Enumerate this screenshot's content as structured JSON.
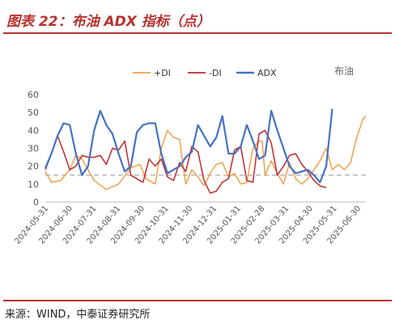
{
  "header": {
    "title": "图表 22：布油 ADX 指标（点）"
  },
  "footer": {
    "source": "来源：WIND，中泰证券研究所"
  },
  "chart_data": {
    "type": "line",
    "title": "图表 22：布油 ADX 指标（点）",
    "annotation": "布油",
    "ylim": [
      0,
      60
    ],
    "yticks": [
      0,
      10,
      20,
      30,
      40,
      50,
      60
    ],
    "reference_line": 15,
    "x_tick_labels": [
      "2024-05-31",
      "2024-06-30",
      "2024-07-31",
      "2024-08-31",
      "2024-09-30",
      "2024-10-31",
      "2024-11-30",
      "2024-12-31",
      "2025-01-31",
      "2025-02-28",
      "2025-03-31",
      "2025-04-30",
      "2025-05-31",
      "2025-06-30"
    ],
    "legend_position": "top-center",
    "series": [
      {
        "name": "+DI",
        "color": "#f0a04b",
        "values": [
          [
            0,
            17
          ],
          [
            2,
            11
          ],
          [
            5,
            12
          ],
          [
            8,
            18
          ],
          [
            10,
            26
          ],
          [
            12,
            24
          ],
          [
            16,
            12
          ],
          [
            20,
            7
          ],
          [
            24,
            10
          ],
          [
            28,
            19
          ],
          [
            31,
            21
          ],
          [
            33,
            13
          ],
          [
            36,
            10
          ],
          [
            38,
            30
          ],
          [
            40,
            40
          ],
          [
            42,
            36
          ],
          [
            44,
            35
          ],
          [
            46,
            10
          ],
          [
            48,
            18
          ],
          [
            50,
            14
          ],
          [
            52,
            9
          ],
          [
            54,
            16
          ],
          [
            56,
            21
          ],
          [
            58,
            22
          ],
          [
            60,
            14
          ],
          [
            62,
            16
          ],
          [
            64,
            10
          ],
          [
            66,
            11
          ],
          [
            68,
            30
          ],
          [
            70,
            34
          ],
          [
            71,
            34
          ],
          [
            72,
            15
          ],
          [
            74,
            23
          ],
          [
            76,
            16
          ],
          [
            78,
            10
          ],
          [
            80,
            22
          ],
          [
            82,
            13
          ],
          [
            84,
            10
          ],
          [
            86,
            13
          ],
          [
            88,
            18
          ],
          [
            90,
            23
          ],
          [
            92,
            30
          ],
          [
            94,
            18
          ],
          [
            96,
            21
          ],
          [
            98,
            18
          ],
          [
            100,
            22
          ],
          [
            102,
            36
          ],
          [
            104,
            46
          ],
          [
            105,
            48
          ]
        ]
      },
      {
        "name": "-DI",
        "color": "#c0282d",
        "values": [
          [
            0,
            18
          ],
          [
            2,
            27
          ],
          [
            4,
            37
          ],
          [
            6,
            28
          ],
          [
            8,
            18
          ],
          [
            10,
            20
          ],
          [
            12,
            26
          ],
          [
            14,
            25
          ],
          [
            16,
            25
          ],
          [
            18,
            26
          ],
          [
            20,
            21
          ],
          [
            22,
            30
          ],
          [
            24,
            29
          ],
          [
            26,
            34
          ],
          [
            28,
            15
          ],
          [
            30,
            13
          ],
          [
            32,
            11
          ],
          [
            34,
            24
          ],
          [
            36,
            20
          ],
          [
            38,
            24
          ],
          [
            40,
            14
          ],
          [
            42,
            12
          ],
          [
            44,
            22
          ],
          [
            46,
            17
          ],
          [
            48,
            31
          ],
          [
            50,
            28
          ],
          [
            52,
            12
          ],
          [
            54,
            5
          ],
          [
            56,
            6
          ],
          [
            58,
            11
          ],
          [
            60,
            13
          ],
          [
            62,
            29
          ],
          [
            64,
            31
          ],
          [
            66,
            12
          ],
          [
            68,
            11
          ],
          [
            70,
            38
          ],
          [
            72,
            40
          ],
          [
            74,
            33
          ],
          [
            76,
            15
          ],
          [
            78,
            20
          ],
          [
            80,
            26
          ],
          [
            82,
            27
          ],
          [
            84,
            21
          ],
          [
            86,
            17
          ],
          [
            88,
            12
          ],
          [
            90,
            9
          ],
          [
            92,
            8
          ]
        ]
      },
      {
        "name": "ADX",
        "color": "#4472c4",
        "values": [
          [
            0,
            19
          ],
          [
            2,
            27
          ],
          [
            4,
            37
          ],
          [
            6,
            44
          ],
          [
            8,
            43
          ],
          [
            10,
            27
          ],
          [
            12,
            15
          ],
          [
            14,
            20
          ],
          [
            16,
            40
          ],
          [
            18,
            51
          ],
          [
            20,
            43
          ],
          [
            22,
            38
          ],
          [
            24,
            27
          ],
          [
            26,
            17
          ],
          [
            28,
            20
          ],
          [
            30,
            39
          ],
          [
            32,
            43
          ],
          [
            34,
            44
          ],
          [
            36,
            44
          ],
          [
            38,
            27
          ],
          [
            40,
            16
          ],
          [
            42,
            18
          ],
          [
            44,
            20
          ],
          [
            46,
            25
          ],
          [
            48,
            28
          ],
          [
            50,
            43
          ],
          [
            52,
            37
          ],
          [
            54,
            31
          ],
          [
            56,
            36
          ],
          [
            58,
            48
          ],
          [
            60,
            27
          ],
          [
            62,
            27
          ],
          [
            64,
            31
          ],
          [
            66,
            43
          ],
          [
            68,
            34
          ],
          [
            70,
            24
          ],
          [
            72,
            26
          ],
          [
            74,
            51
          ],
          [
            76,
            40
          ],
          [
            78,
            30
          ],
          [
            80,
            20
          ],
          [
            82,
            16
          ],
          [
            84,
            17
          ],
          [
            86,
            18
          ],
          [
            88,
            15
          ],
          [
            90,
            11
          ],
          [
            92,
            20
          ],
          [
            94,
            52
          ]
        ]
      }
    ]
  }
}
